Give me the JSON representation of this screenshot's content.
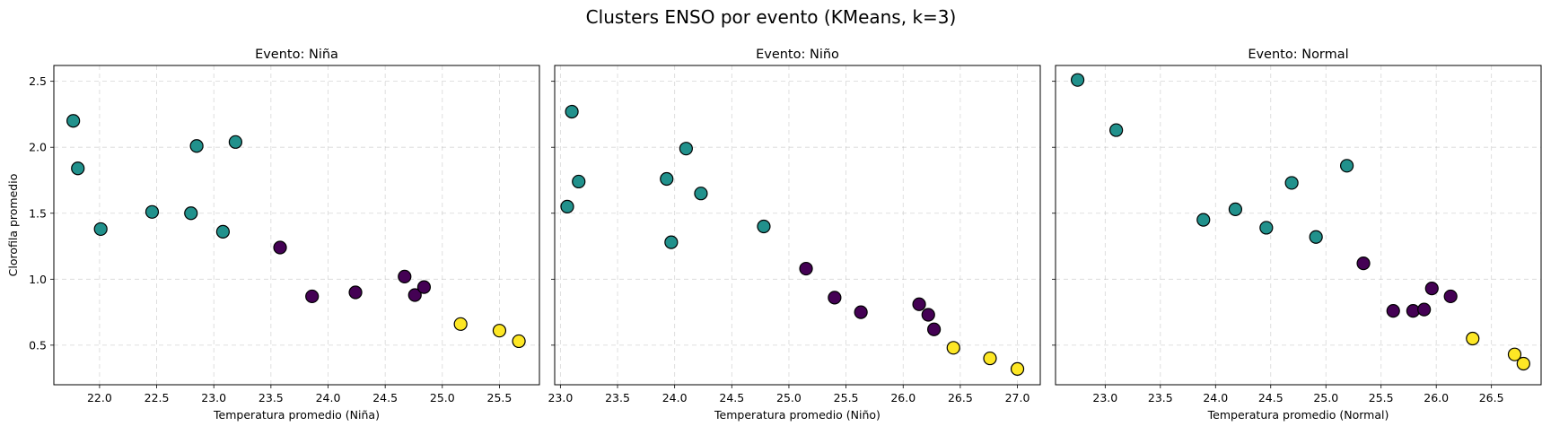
{
  "figure": {
    "title": "Clusters ENSO por evento (KMeans, k=3)"
  },
  "colors": {
    "cluster_0": "#440154",
    "cluster_1": "#21918c",
    "cluster_2": "#fde725",
    "grid": "#b0b0b0"
  },
  "chart_data": [
    {
      "type": "scatter",
      "title": "Evento: Niña",
      "xlabel": "Temperatura promedio (Niña)",
      "ylabel": "Clorofila promedio",
      "xlim": [
        21.6,
        25.85
      ],
      "ylim": [
        0.2,
        2.62
      ],
      "xticks": [
        22.0,
        22.5,
        23.0,
        23.5,
        24.0,
        24.5,
        25.0,
        25.5
      ],
      "yticks": [
        0.5,
        1.0,
        1.5,
        2.0,
        2.5
      ],
      "grid": true,
      "points": [
        {
          "x": 21.77,
          "y": 2.2,
          "cluster": 1
        },
        {
          "x": 21.81,
          "y": 1.84,
          "cluster": 1
        },
        {
          "x": 22.01,
          "y": 1.38,
          "cluster": 1
        },
        {
          "x": 22.46,
          "y": 1.51,
          "cluster": 1
        },
        {
          "x": 22.8,
          "y": 1.5,
          "cluster": 1
        },
        {
          "x": 22.85,
          "y": 2.01,
          "cluster": 1
        },
        {
          "x": 23.08,
          "y": 1.36,
          "cluster": 1
        },
        {
          "x": 23.19,
          "y": 2.04,
          "cluster": 1
        },
        {
          "x": 23.58,
          "y": 1.24,
          "cluster": 0
        },
        {
          "x": 23.86,
          "y": 0.87,
          "cluster": 0
        },
        {
          "x": 24.24,
          "y": 0.9,
          "cluster": 0
        },
        {
          "x": 24.67,
          "y": 1.02,
          "cluster": 0
        },
        {
          "x": 24.76,
          "y": 0.88,
          "cluster": 0
        },
        {
          "x": 24.84,
          "y": 0.94,
          "cluster": 0
        },
        {
          "x": 25.16,
          "y": 0.66,
          "cluster": 2
        },
        {
          "x": 25.5,
          "y": 0.61,
          "cluster": 2
        },
        {
          "x": 25.67,
          "y": 0.53,
          "cluster": 2
        }
      ]
    },
    {
      "type": "scatter",
      "title": "Evento: Niño",
      "xlabel": "Temperatura promedio (Niño)",
      "ylabel": "",
      "xlim": [
        22.95,
        27.2
      ],
      "ylim": [
        0.2,
        2.62
      ],
      "xticks": [
        23.0,
        23.5,
        24.0,
        24.5,
        25.0,
        25.5,
        26.0,
        26.5,
        27.0
      ],
      "yticks": [
        0.5,
        1.0,
        1.5,
        2.0,
        2.5
      ],
      "grid": true,
      "points": [
        {
          "x": 23.06,
          "y": 1.55,
          "cluster": 1
        },
        {
          "x": 23.1,
          "y": 2.27,
          "cluster": 1
        },
        {
          "x": 23.16,
          "y": 1.74,
          "cluster": 1
        },
        {
          "x": 23.93,
          "y": 1.76,
          "cluster": 1
        },
        {
          "x": 23.97,
          "y": 1.28,
          "cluster": 1
        },
        {
          "x": 24.1,
          "y": 1.99,
          "cluster": 1
        },
        {
          "x": 24.23,
          "y": 1.65,
          "cluster": 1
        },
        {
          "x": 24.78,
          "y": 1.4,
          "cluster": 1
        },
        {
          "x": 25.15,
          "y": 1.08,
          "cluster": 0
        },
        {
          "x": 25.4,
          "y": 0.86,
          "cluster": 0
        },
        {
          "x": 25.63,
          "y": 0.75,
          "cluster": 0
        },
        {
          "x": 26.14,
          "y": 0.81,
          "cluster": 0
        },
        {
          "x": 26.22,
          "y": 0.73,
          "cluster": 0
        },
        {
          "x": 26.27,
          "y": 0.62,
          "cluster": 0
        },
        {
          "x": 26.44,
          "y": 0.48,
          "cluster": 2
        },
        {
          "x": 26.76,
          "y": 0.4,
          "cluster": 2
        },
        {
          "x": 27.0,
          "y": 0.32,
          "cluster": 2
        }
      ]
    },
    {
      "type": "scatter",
      "title": "Evento: Normal",
      "xlabel": "Temperatura promedio (Normal)",
      "ylabel": "",
      "xlim": [
        22.55,
        26.95
      ],
      "ylim": [
        0.2,
        2.62
      ],
      "xticks": [
        23.0,
        23.5,
        24.0,
        24.5,
        25.0,
        25.5,
        26.0,
        26.5
      ],
      "yticks": [
        0.5,
        1.0,
        1.5,
        2.0,
        2.5
      ],
      "grid": true,
      "points": [
        {
          "x": 22.75,
          "y": 2.51,
          "cluster": 1
        },
        {
          "x": 23.1,
          "y": 2.13,
          "cluster": 1
        },
        {
          "x": 23.89,
          "y": 1.45,
          "cluster": 1
        },
        {
          "x": 24.18,
          "y": 1.53,
          "cluster": 1
        },
        {
          "x": 24.46,
          "y": 1.39,
          "cluster": 1
        },
        {
          "x": 24.69,
          "y": 1.73,
          "cluster": 1
        },
        {
          "x": 24.91,
          "y": 1.32,
          "cluster": 1
        },
        {
          "x": 25.19,
          "y": 1.86,
          "cluster": 1
        },
        {
          "x": 25.34,
          "y": 1.12,
          "cluster": 0
        },
        {
          "x": 25.61,
          "y": 0.76,
          "cluster": 0
        },
        {
          "x": 25.79,
          "y": 0.76,
          "cluster": 0
        },
        {
          "x": 25.89,
          "y": 0.77,
          "cluster": 0
        },
        {
          "x": 25.96,
          "y": 0.93,
          "cluster": 0
        },
        {
          "x": 26.13,
          "y": 0.87,
          "cluster": 0
        },
        {
          "x": 26.33,
          "y": 0.55,
          "cluster": 2
        },
        {
          "x": 26.71,
          "y": 0.43,
          "cluster": 2
        },
        {
          "x": 26.79,
          "y": 0.36,
          "cluster": 2
        }
      ]
    }
  ]
}
